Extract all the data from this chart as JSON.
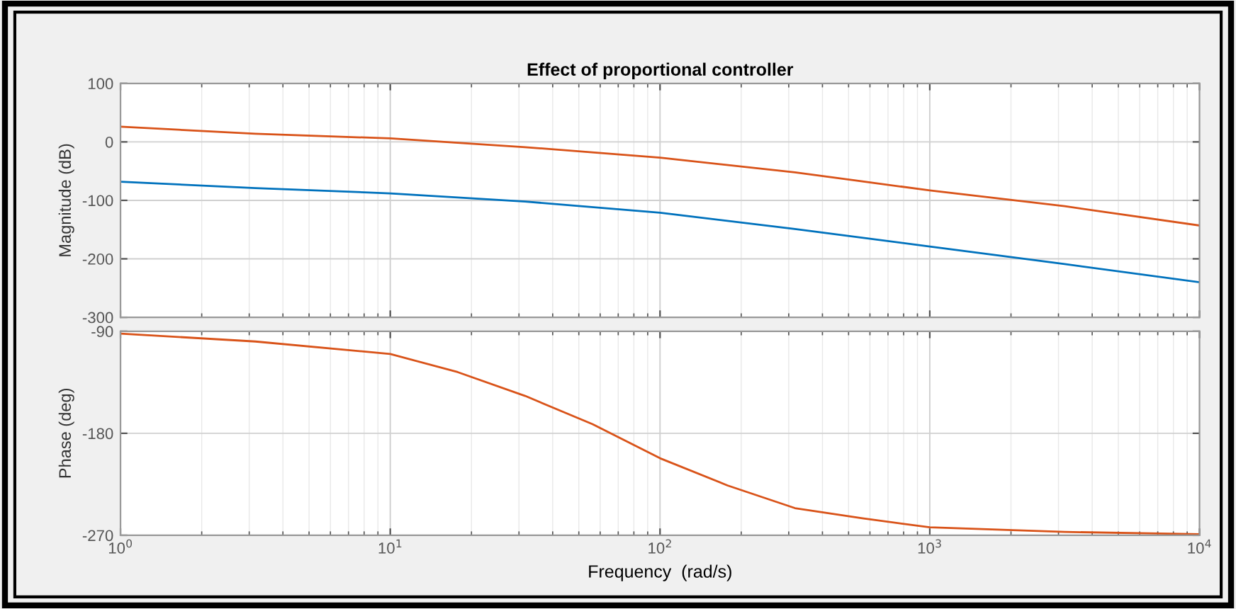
{
  "chart_data": [
    {
      "type": "line",
      "title": "Effect of proportional controller",
      "ylabel": "Magnitude (dB)",
      "x": [
        1,
        3.162,
        10,
        31.62,
        100,
        316.2,
        1000,
        3162,
        10000
      ],
      "series": [
        {
          "color": "#d95319",
          "values": [
            26,
            14,
            6,
            -9,
            -27,
            -52,
            -83,
            -110,
            -143
          ]
        },
        {
          "color": "#0072bd",
          "values": [
            -68,
            -79,
            -88,
            -102,
            -121,
            -149,
            -179,
            -209,
            -240
          ]
        }
      ],
      "log": "x",
      "xlim": [
        1,
        10000
      ],
      "ylim": [
        -300,
        100
      ],
      "yticks": [
        -300,
        -200,
        -100,
        0,
        100
      ],
      "xticks": [
        {
          "value": 1,
          "label": null
        },
        {
          "value": 10,
          "label": null
        },
        {
          "value": 100,
          "label": null
        },
        {
          "value": 1000,
          "label": null
        },
        {
          "value": 10000,
          "label": null
        }
      ],
      "tick_labels": "y",
      "grid": true
    },
    {
      "type": "line",
      "xlabel": "Frequency  (rad/s)",
      "ylabel": "Phase (deg)",
      "x": [
        1,
        3.162,
        10,
        17.78,
        31.62,
        56.23,
        100,
        177.8,
        316.2,
        562.3,
        1000,
        3162,
        10000
      ],
      "series": [
        {
          "color": "#d95319",
          "values": [
            -92,
            -99,
            -110,
            -126,
            -147,
            -172,
            -202,
            -226,
            -246,
            -255,
            -263,
            -267,
            -269
          ]
        }
      ],
      "log": "x",
      "xlim": [
        1,
        10000
      ],
      "ylim": [
        -270,
        -90
      ],
      "yticks": [
        -270,
        -180,
        -90
      ],
      "xticks": [
        {
          "value": 1,
          "label": "10$^{0}$"
        },
        {
          "value": 10,
          "label": "10$^{1}$"
        },
        {
          "value": 100,
          "label": "10$^{2}$"
        },
        {
          "value": 1000,
          "label": "10$^{3}$"
        },
        {
          "value": 10000,
          "label": "10$^{4}$"
        }
      ],
      "grid": true
    }
  ]
}
